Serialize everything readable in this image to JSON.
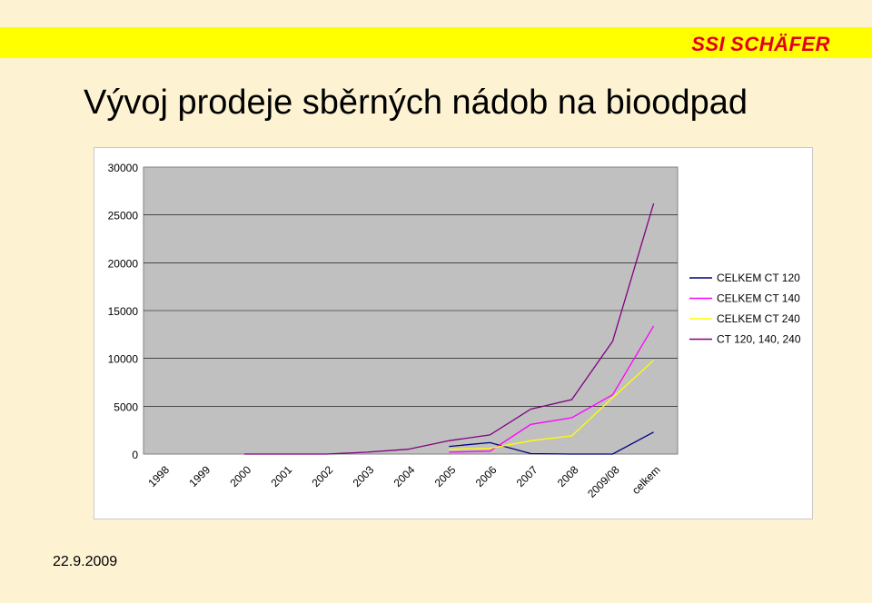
{
  "header": {
    "logo_part1": "SSI",
    "logo_part2": "SCHÄFER",
    "brand_color": "#e2001a",
    "band_color": "#ffff00"
  },
  "slide": {
    "title": "Vývoj prodeje sběrných nádob na bioodpad",
    "date": "22.9.2009"
  },
  "chart_data": {
    "type": "line",
    "title": "",
    "xlabel": "",
    "ylabel": "",
    "categories": [
      "1998",
      "1999",
      "2000",
      "2001",
      "2002",
      "2003",
      "2004",
      "2005",
      "2006",
      "2007",
      "2008",
      "2009/08",
      "celkem"
    ],
    "ylim": [
      0,
      30000
    ],
    "yticks": [
      0,
      5000,
      10000,
      15000,
      20000,
      25000,
      30000
    ],
    "grid": true,
    "plot_background": "#c0c0c0",
    "legend_position": "right",
    "series": [
      {
        "name": "CELKEM CT 120",
        "color": "#000080",
        "values": [
          null,
          null,
          null,
          null,
          null,
          null,
          null,
          800,
          1200,
          50,
          0,
          0,
          2300
        ]
      },
      {
        "name": "CELKEM CT 140",
        "color": "#ff00ff",
        "values": [
          null,
          null,
          null,
          null,
          null,
          null,
          null,
          200,
          300,
          3100,
          3800,
          6200,
          13400
        ]
      },
      {
        "name": "CELKEM CT 240",
        "color": "#ffff00",
        "values": [
          null,
          null,
          null,
          null,
          null,
          null,
          null,
          500,
          600,
          1400,
          1900,
          5900,
          9800
        ]
      },
      {
        "name": "CT 120, 140, 240",
        "color": "#800080",
        "values": [
          null,
          null,
          0,
          0,
          0,
          200,
          500,
          1400,
          2000,
          4700,
          5700,
          11800,
          26200
        ]
      }
    ]
  }
}
